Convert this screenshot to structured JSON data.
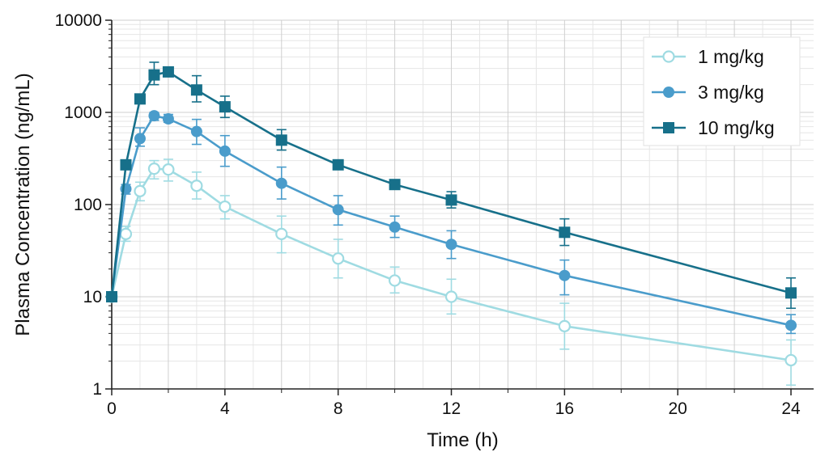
{
  "chart_data": {
    "type": "line",
    "title": "",
    "xlabel": "Time (h)",
    "ylabel": "Plasma Concentration (ng/mL)",
    "yscale": "log",
    "xlim": [
      0,
      24.8
    ],
    "ylim": [
      1,
      10000
    ],
    "xticks": [
      0,
      4,
      8,
      12,
      16,
      20,
      24
    ],
    "yticks": [
      1,
      10,
      100,
      1000,
      10000
    ],
    "grid": true,
    "legend_position": "top-right",
    "series": [
      {
        "name": "1 mg/kg",
        "color": "#9fdbe2",
        "marker": "circle-open",
        "x": [
          0,
          0.5,
          1,
          1.5,
          2,
          3,
          4,
          6,
          8,
          10,
          12,
          16,
          24
        ],
        "y": [
          10,
          48,
          140,
          245,
          240,
          160,
          95,
          48,
          26,
          15,
          10,
          4.8,
          2.05
        ],
        "err_low": [
          10,
          40,
          110,
          190,
          180,
          115,
          70,
          30,
          16,
          11,
          6.5,
          2.7,
          1.1
        ],
        "err_high": [
          10,
          58,
          175,
          300,
          310,
          225,
          125,
          75,
          42,
          21,
          15.5,
          8.5,
          3.4
        ]
      },
      {
        "name": "3 mg/kg",
        "color": "#4a9ccb",
        "marker": "circle",
        "x": [
          0,
          0.5,
          1,
          1.5,
          2,
          3,
          4,
          6,
          8,
          10,
          12,
          16,
          24
        ],
        "y": [
          10,
          148,
          520,
          920,
          850,
          620,
          380,
          170,
          88,
          57,
          37,
          17,
          4.9
        ],
        "err_low": [
          10,
          130,
          430,
          820,
          780,
          450,
          260,
          115,
          60,
          44,
          26,
          10.5,
          4.0
        ],
        "err_high": [
          10,
          165,
          680,
          1000,
          950,
          840,
          560,
          255,
          125,
          75,
          52,
          25,
          6.4
        ]
      },
      {
        "name": "10 mg/kg",
        "color": "#17708a",
        "marker": "square",
        "x": [
          0,
          0.5,
          1,
          1.5,
          2,
          3,
          4,
          6,
          8,
          10,
          12,
          16,
          24
        ],
        "y": [
          10,
          270,
          1400,
          2550,
          2750,
          1750,
          1150,
          500,
          270,
          165,
          112,
          50,
          11
        ],
        "err_low": [
          10,
          250,
          1280,
          2000,
          2550,
          1300,
          880,
          390,
          240,
          150,
          92,
          36,
          7.5
        ],
        "err_high": [
          10,
          290,
          1500,
          3500,
          2950,
          2500,
          1500,
          650,
          290,
          180,
          138,
          70,
          16
        ]
      }
    ]
  }
}
